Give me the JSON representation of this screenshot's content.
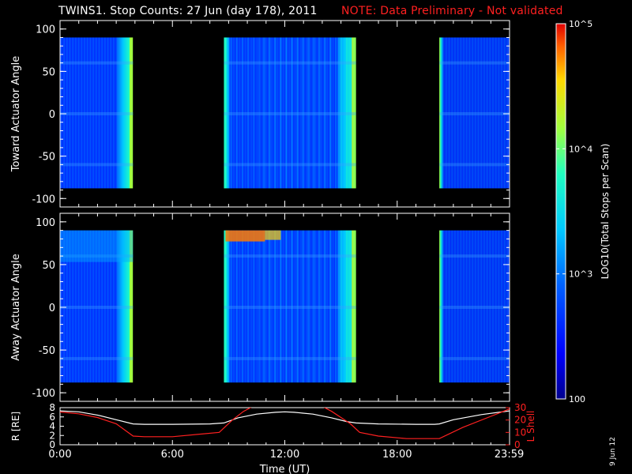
{
  "header": {
    "title": "TWINS1. Stop Counts: 27 Jun (day 178), 2011",
    "note": "NOTE: Data Preliminary - Not validated"
  },
  "date_stamp": "9 Jun 12",
  "colors": {
    "note": "#ff2020",
    "axis": "#ffffff",
    "background": "#000000",
    "lshell": "#ff2020",
    "radius": "#ffffff"
  },
  "chart_data": [
    {
      "type": "heatmap",
      "panel": "toward",
      "ylabel": "Toward Actuator Angle",
      "ylim": [
        -110,
        110
      ],
      "yticks": [
        100,
        50,
        0,
        -50,
        -100
      ],
      "xlim": [
        0,
        24
      ],
      "data_y_range": [
        -88,
        90
      ],
      "data_blocks_hours": [
        [
          0.0,
          3.9
        ],
        [
          8.75,
          15.8
        ],
        [
          20.25,
          24.0
        ]
      ],
      "colorscale": "log10 counts 100 to 1e5"
    },
    {
      "type": "heatmap",
      "panel": "away",
      "ylabel": "Away Actuator Angle",
      "ylim": [
        -110,
        110
      ],
      "yticks": [
        100,
        50,
        0,
        -50,
        -100
      ],
      "xlim": [
        0,
        24
      ],
      "data_y_range": [
        -88,
        90
      ],
      "data_blocks_hours": [
        [
          0.0,
          3.9
        ],
        [
          8.75,
          15.8
        ],
        [
          20.25,
          24.0
        ]
      ],
      "colorscale": "log10 counts 100 to 1e5"
    },
    {
      "type": "line",
      "panel": "orbit",
      "ylabel_left": "R [RE]",
      "ylabel_right": "L Shell",
      "ylim_left": [
        0,
        8
      ],
      "ylim_right": [
        0,
        30
      ],
      "yticks_left": [
        0,
        2,
        4,
        6,
        8
      ],
      "yticks_right": [
        0,
        10,
        20,
        30
      ],
      "xlabel": "Time (UT)",
      "xticks": [
        "0:00",
        "6:00",
        "12:00",
        "18:00",
        "23:59"
      ],
      "xtick_hours": [
        0,
        6,
        12,
        18,
        23.98
      ],
      "series": [
        {
          "name": "R [RE]",
          "axis": "left",
          "x": [
            0,
            1,
            2,
            3,
            3.9,
            4.5,
            6,
            8,
            8.75,
            9.5,
            10.5,
            11.5,
            12,
            12.5,
            13.5,
            14.5,
            15.3,
            15.8,
            17,
            19,
            20,
            20.25,
            21,
            22.5,
            24
          ],
          "values": [
            7.3,
            7.1,
            6.4,
            5.4,
            4.5,
            4.4,
            4.4,
            4.5,
            4.7,
            5.8,
            6.6,
            7.0,
            7.1,
            7.0,
            6.6,
            5.8,
            5.0,
            4.7,
            4.5,
            4.4,
            4.4,
            4.5,
            5.4,
            6.5,
            7.3
          ]
        },
        {
          "name": "L Shell",
          "axis": "right",
          "x": [
            0,
            1,
            2,
            3,
            3.9,
            4.5,
            6,
            8.5,
            9.2,
            9.8,
            10.3,
            14.0,
            14.5,
            15.0,
            15.5,
            16.0,
            17,
            18.5,
            20.25,
            21.5,
            23,
            24
          ],
          "values": [
            26.5,
            25,
            22,
            17,
            7,
            6.5,
            6.5,
            10,
            20,
            27,
            31,
            31,
            27,
            22,
            17,
            10,
            7,
            5,
            5,
            14,
            23,
            29
          ]
        }
      ]
    }
  ],
  "colorbar": {
    "label": "LOG10(Total Stops per Scan)",
    "ticks": [
      {
        "label": "10^5",
        "exp": 5
      },
      {
        "label": "10^4",
        "exp": 4
      },
      {
        "label": "10^3",
        "exp": 3
      },
      {
        "label": "100",
        "exp": 2
      }
    ]
  }
}
